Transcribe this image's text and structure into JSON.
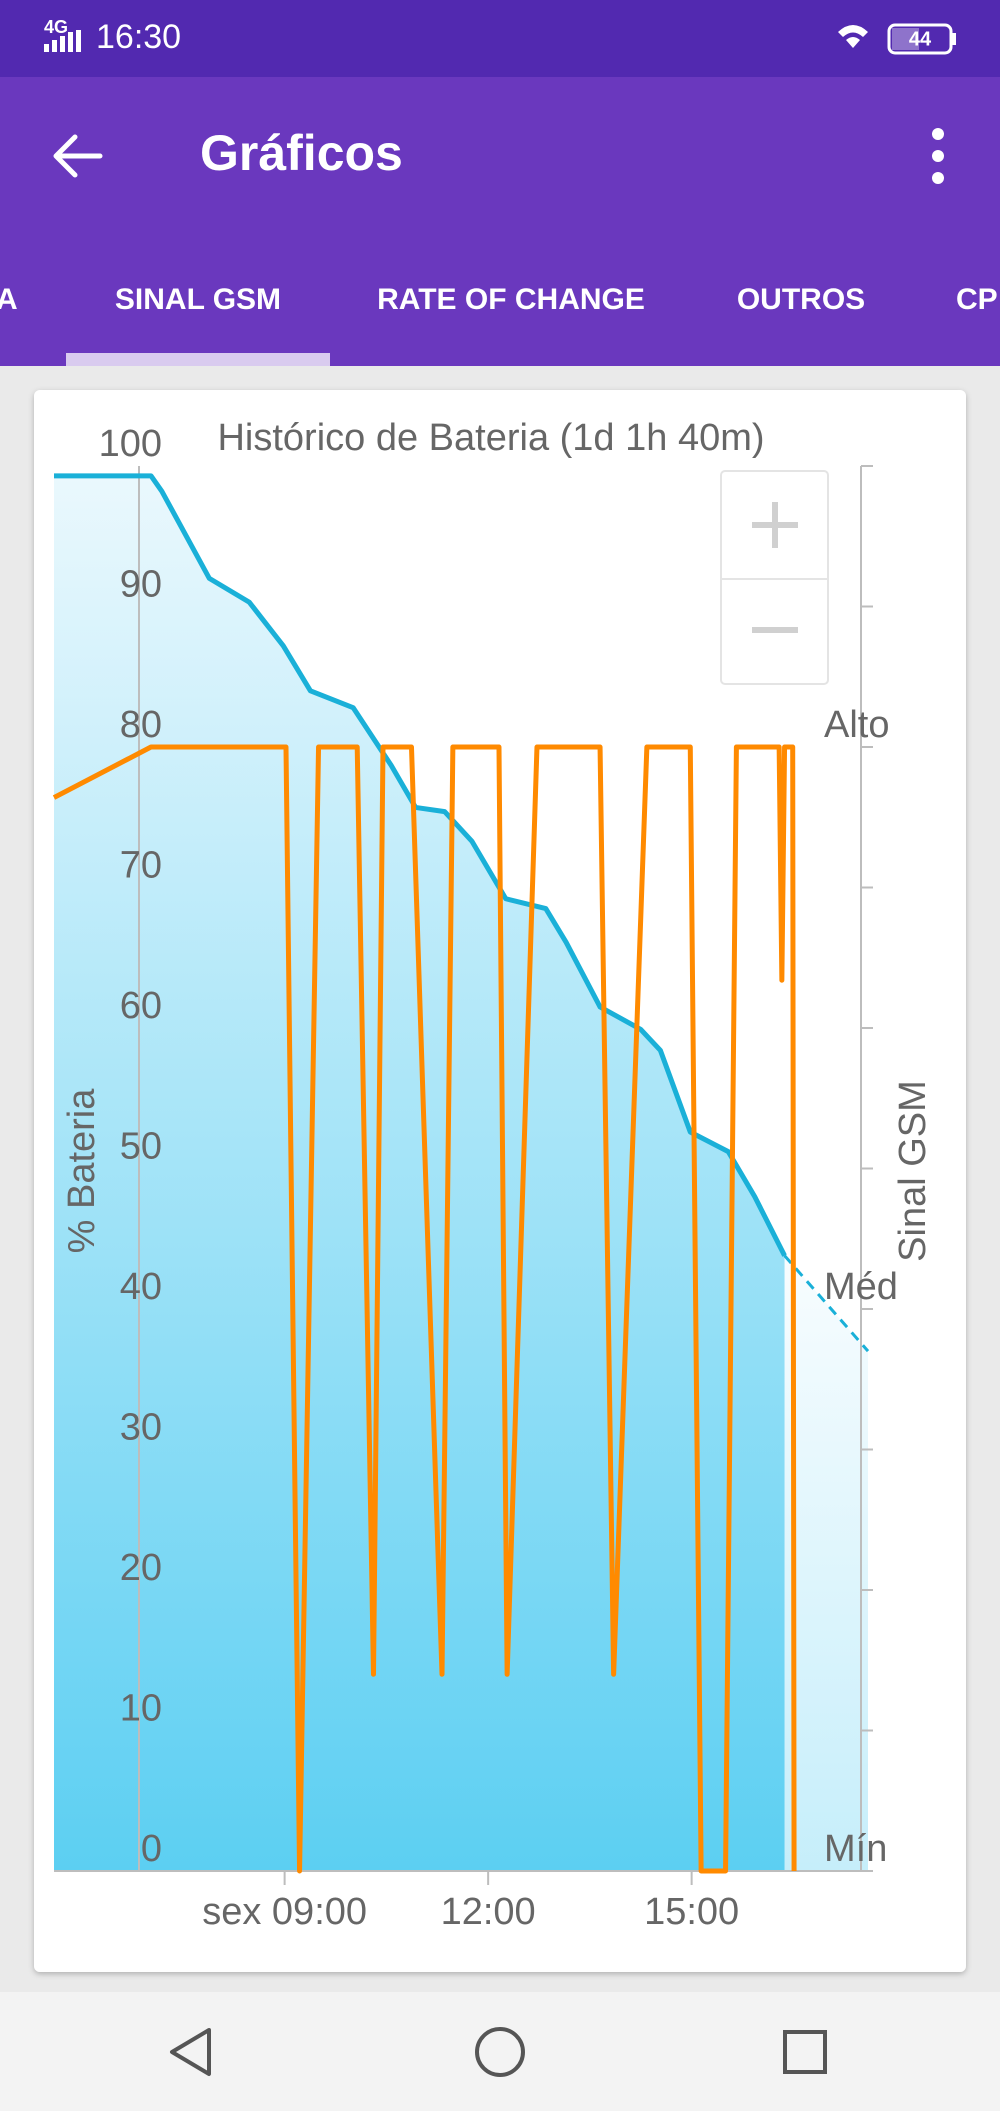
{
  "status_bar": {
    "network": "4G",
    "time": "16:30",
    "battery": "44"
  },
  "app_bar": {
    "title": "Gráficos"
  },
  "tabs": [
    "A",
    "SINAL GSM",
    "RATE OF CHANGE",
    "OUTROS",
    "CP"
  ],
  "selected_tab": 1,
  "chart_data": {
    "type": "line",
    "title": "Histórico de Bateria (1d 1h 40m)",
    "y_label": "% Bateria",
    "y2_label": "Sinal GSM",
    "xlim": [
      5.6,
      17.6
    ],
    "xticks": [
      {
        "value": 9,
        "label": "sex 09:00"
      },
      {
        "value": 12,
        "label": "12:00"
      },
      {
        "value": 15,
        "label": "15:00"
      }
    ],
    "ylim": [
      0,
      100
    ],
    "yticks": [
      0,
      10,
      20,
      30,
      40,
      50,
      60,
      70,
      80,
      90,
      100
    ],
    "y2lim": [
      0,
      5
    ],
    "y2ticks": [
      {
        "value": 0,
        "label": "Mín"
      },
      {
        "value": 2,
        "label": "Méd"
      },
      {
        "value": 4,
        "label": "Alto"
      }
    ],
    "series": [
      {
        "color": "#1ab0d8",
        "fill": true,
        "x": [
          5.6,
          7.03,
          7.19,
          7.89,
          8.48,
          8.98,
          9.38,
          10.01,
          10.57,
          10.93,
          11.36,
          11.76,
          12.26,
          12.85,
          13.15,
          13.65,
          14.25,
          14.54,
          14.98,
          15.54,
          15.93,
          16.37
        ],
        "values": [
          99.3,
          99.3,
          98.2,
          92,
          90.3,
          87.2,
          84,
          82.8,
          78.7,
          75.7,
          75.4,
          73.3,
          69.2,
          68.5,
          66.1,
          61.5,
          59.9,
          58.4,
          52.6,
          51.2,
          48,
          43.8
        ]
      },
      {
        "color": "#1ab0d8",
        "fill": true,
        "dashed": true,
        "x": [
          16.37,
          17.6
        ],
        "values": [
          43.8,
          37
        ]
      },
      {
        "color": "#ff8a00",
        "axis": "y2",
        "x": [
          5.6,
          7.03,
          9.02,
          9.22,
          9.5,
          10.07,
          10.31,
          10.45,
          10.87,
          11.32,
          11.48,
          12.16,
          12.28,
          12.72,
          13.65,
          13.85,
          14.34,
          14.98,
          15.14,
          15.5,
          15.66,
          16.29,
          16.33,
          16.37,
          16.49,
          16.51
        ],
        "values": [
          3.82,
          4,
          4,
          0,
          4,
          4,
          0.7,
          4,
          4,
          0.7,
          4,
          4,
          0.7,
          4,
          4,
          0.7,
          4,
          4,
          0,
          0,
          4,
          4,
          3.17,
          4,
          4,
          0
        ]
      }
    ]
  }
}
